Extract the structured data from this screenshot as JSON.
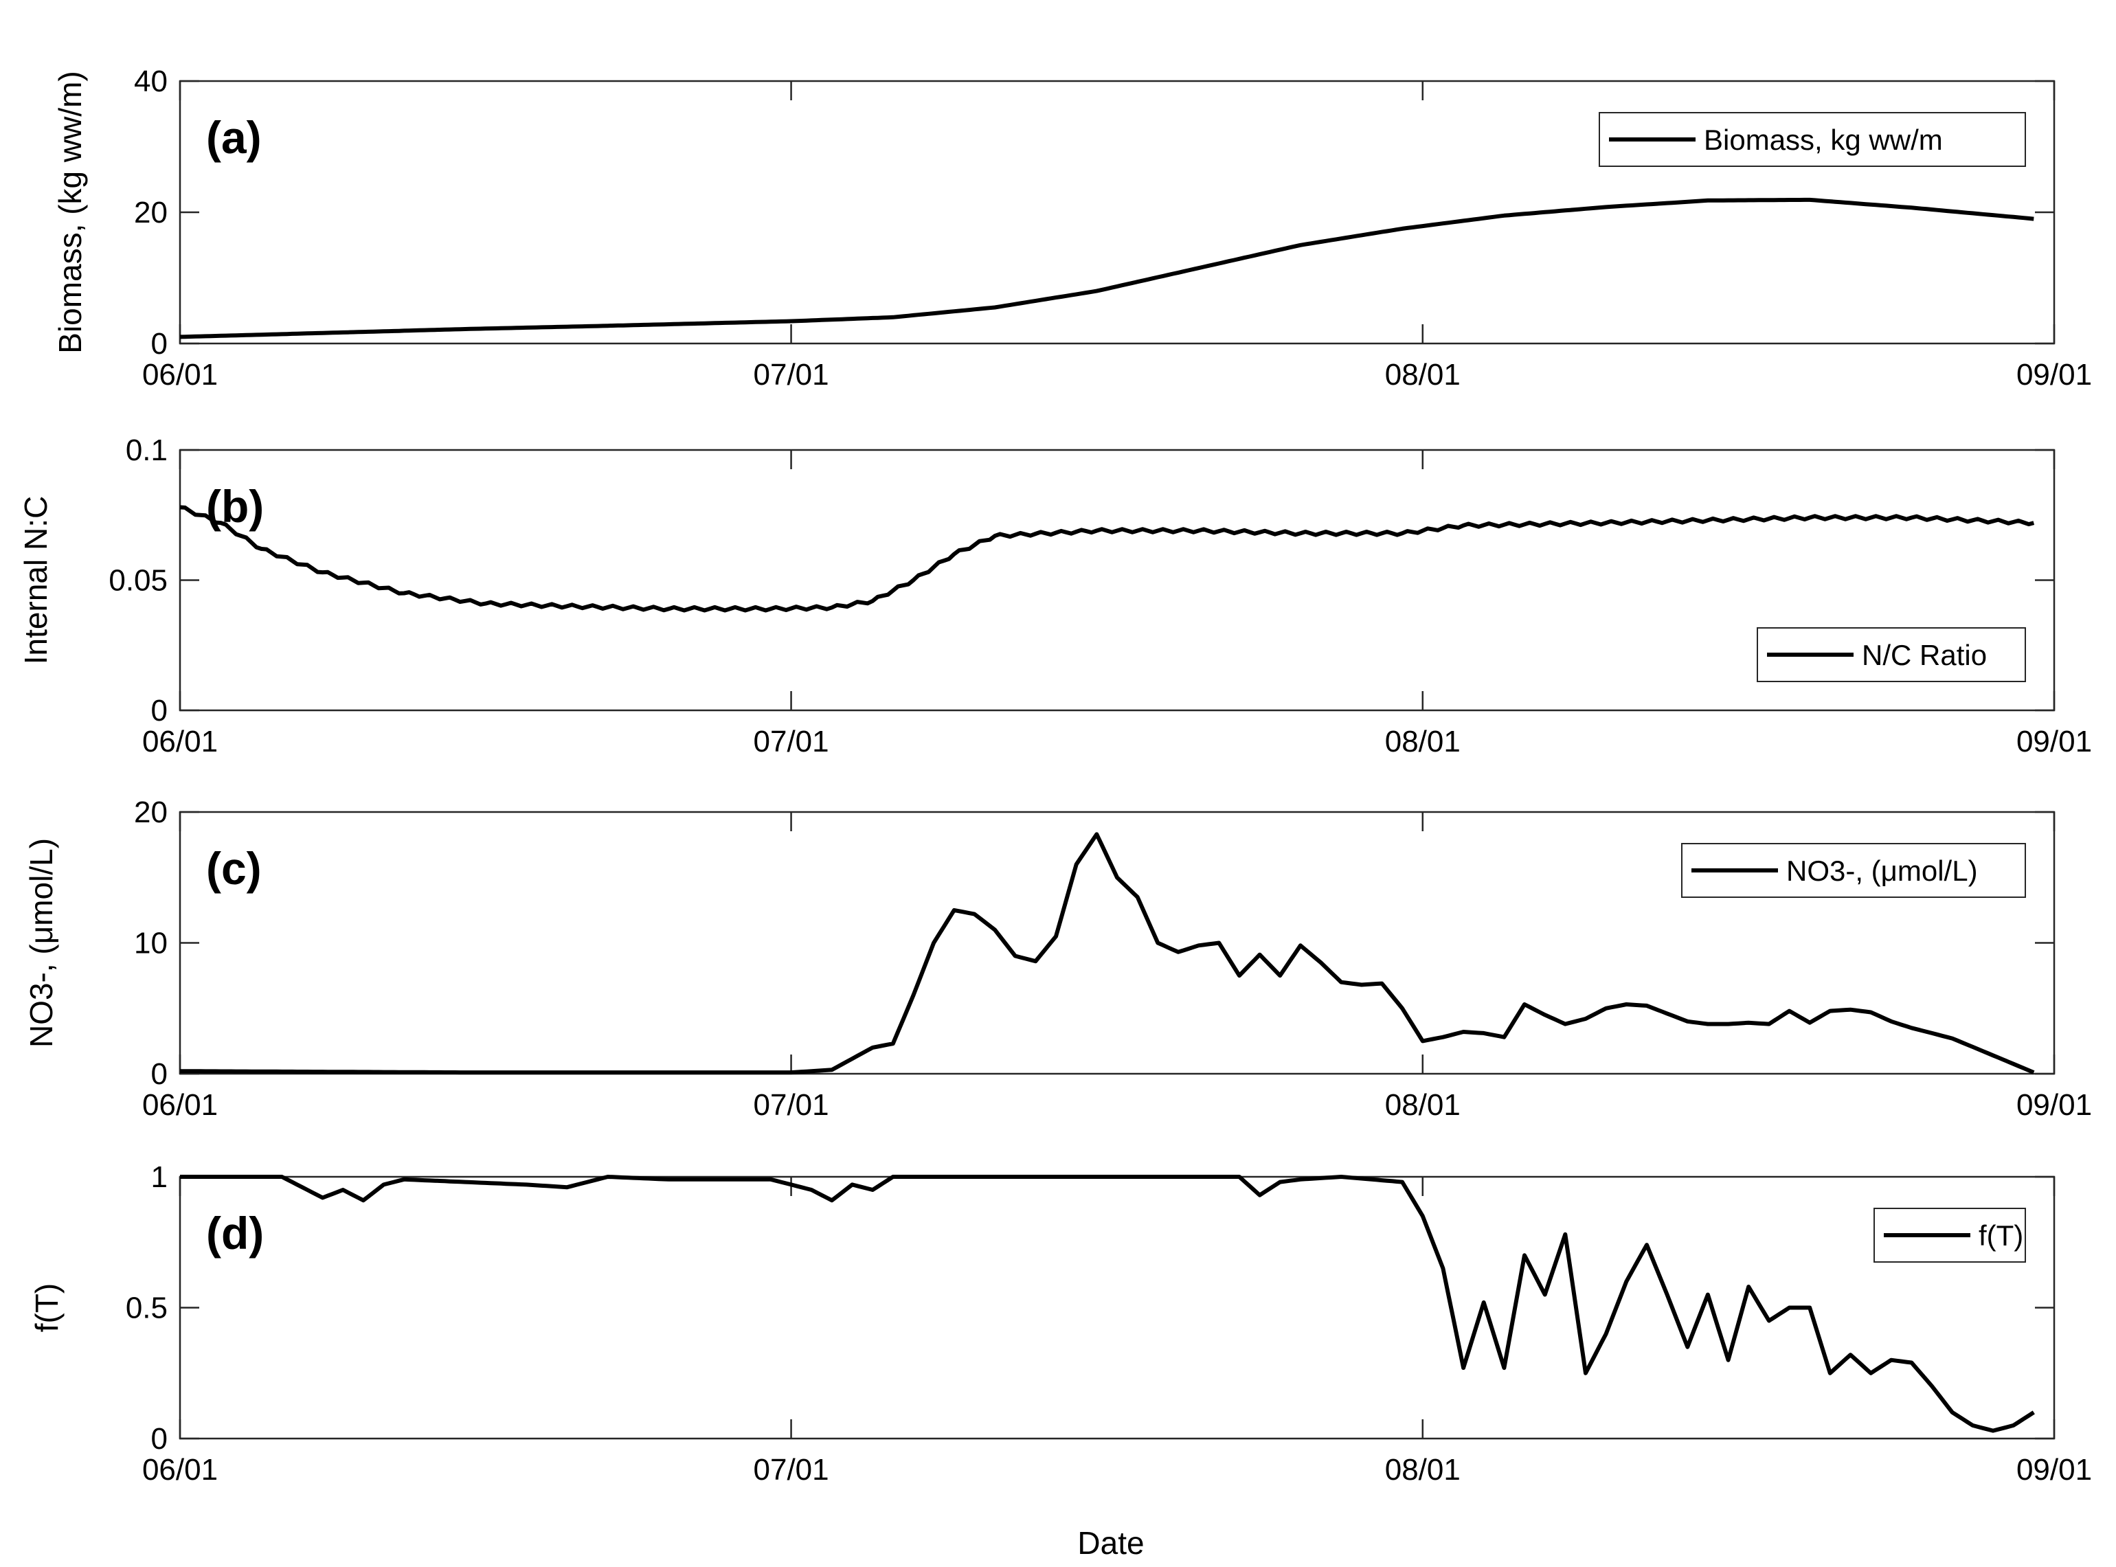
{
  "colors": {
    "line": "#000000",
    "axes": "#262626",
    "background": "#ffffff"
  },
  "x_axis_label": "Date",
  "chart_data": [
    {
      "type": "line",
      "panel_label": "(a)",
      "ylabel": "Biomass, (kg ww/m)",
      "ylim": [
        0,
        40
      ],
      "yticks": [
        0,
        20,
        40
      ],
      "ytick_labels": [
        "0",
        "20",
        "40"
      ],
      "xlim": [
        "06/01",
        "09/01"
      ],
      "xtick_labels": [
        "06/01",
        "07/01",
        "08/01",
        "09/01"
      ],
      "legend": {
        "entries": [
          "Biomass, kg ww/m"
        ],
        "placement": "top-right"
      },
      "series": [
        {
          "name": "Biomass, kg ww/m",
          "x": [
            "06/01",
            "06/08",
            "06/15",
            "06/22",
            "07/01",
            "07/06",
            "07/11",
            "07/16",
            "07/21",
            "07/26",
            "07/31",
            "08/05",
            "08/10",
            "08/15",
            "08/20",
            "08/25",
            "08/31"
          ],
          "y": [
            1,
            1.6,
            2.2,
            2.7,
            3.4,
            4,
            5.5,
            8,
            11.5,
            15,
            17.5,
            19.5,
            20.8,
            21.8,
            21.9,
            20.7,
            19
          ],
          "wiggle": 0
        }
      ]
    },
    {
      "type": "line",
      "panel_label": "(b)",
      "ylabel": "Internal N:C",
      "ylim": [
        0,
        0.1
      ],
      "yticks": [
        0,
        0.05,
        0.1
      ],
      "ytick_labels": [
        "0",
        "0.05",
        "0.1"
      ],
      "xlim": [
        "06/01",
        "09/01"
      ],
      "xtick_labels": [
        "06/01",
        "07/01",
        "08/01",
        "09/01"
      ],
      "legend": {
        "entries": [
          "N/C Ratio"
        ],
        "placement": "bottom-right"
      },
      "series": [
        {
          "name": "N/C Ratio",
          "x": [
            "06/01",
            "06/03",
            "06/05",
            "06/08",
            "06/12",
            "06/16",
            "06/20",
            "06/25",
            "06/30",
            "07/03",
            "07/05",
            "07/07",
            "07/09",
            "07/11",
            "07/16",
            "07/21",
            "07/26",
            "07/31",
            "08/03",
            "08/10",
            "08/20",
            "08/25",
            "08/31"
          ],
          "y": [
            0.078,
            0.072,
            0.062,
            0.053,
            0.045,
            0.041,
            0.04,
            0.039,
            0.039,
            0.0395,
            0.042,
            0.05,
            0.06,
            0.067,
            0.069,
            0.069,
            0.068,
            0.068,
            0.071,
            0.072,
            0.074,
            0.074,
            0.072
          ],
          "wiggle": 0.0006
        }
      ]
    },
    {
      "type": "line",
      "panel_label": "(c)",
      "ylabel": "NO3-, (μmol/L)",
      "ylim": [
        0,
        20
      ],
      "yticks": [
        0,
        10,
        20
      ],
      "ytick_labels": [
        "0",
        "10",
        "20"
      ],
      "xlim": [
        "06/01",
        "09/01"
      ],
      "xtick_labels": [
        "06/01",
        "07/01",
        "08/01",
        "09/01"
      ],
      "legend": {
        "entries": [
          "NO3-, (μmol/L)"
        ],
        "placement": "top-right"
      },
      "series": [
        {
          "name": "NO3-, (μmol/L)",
          "x": [
            "06/01",
            "06/15",
            "07/01",
            "07/03",
            "07/05",
            "07/06",
            "07/07",
            "07/08",
            "07/09",
            "07/10",
            "07/11",
            "07/12",
            "07/13",
            "07/14",
            "07/15",
            "07/16",
            "07/17",
            "07/18",
            "07/19",
            "07/20",
            "07/21",
            "07/22",
            "07/23",
            "07/24",
            "07/25",
            "07/26",
            "07/27",
            "07/28",
            "07/29",
            "07/30",
            "07/31",
            "08/01",
            "08/02",
            "08/03",
            "08/04",
            "08/05",
            "08/06",
            "08/07",
            "08/08",
            "08/09",
            "08/10",
            "08/11",
            "08/12",
            "08/13",
            "08/14",
            "08/15",
            "08/16",
            "08/17",
            "08/18",
            "08/19",
            "08/20",
            "08/21",
            "08/22",
            "08/23",
            "08/24",
            "08/25",
            "08/27",
            "08/31"
          ],
          "y": [
            0.2,
            0.1,
            0.1,
            0.3,
            2,
            2.3,
            6,
            10,
            12.5,
            12.2,
            11,
            9,
            8.6,
            10.5,
            16,
            18.3,
            15,
            13.5,
            10,
            9.3,
            9.8,
            10,
            7.5,
            9.1,
            7.5,
            9.8,
            8.5,
            7,
            6.8,
            6.9,
            5,
            2.5,
            2.8,
            3.2,
            3.1,
            2.8,
            5.3,
            4.5,
            3.8,
            4.2,
            5,
            5.3,
            5.2,
            4.6,
            4,
            3.8,
            3.8,
            3.9,
            3.8,
            4.8,
            3.9,
            4.8,
            4.9,
            4.7,
            4,
            3.5,
            2.7,
            0.1
          ],
          "wiggle": 0
        }
      ]
    },
    {
      "type": "line",
      "panel_label": "(d)",
      "ylabel": "f(T)",
      "ylim": [
        0,
        1
      ],
      "yticks": [
        0,
        0.5,
        1
      ],
      "ytick_labels": [
        "0",
        "0.5",
        "1"
      ],
      "xlim": [
        "06/01",
        "09/01"
      ],
      "xtick_labels": [
        "06/01",
        "07/01",
        "08/01",
        "09/01"
      ],
      "legend": {
        "entries": [
          "f(T)"
        ],
        "placement": "top-right"
      },
      "series": [
        {
          "name": "f(T)",
          "x": [
            "06/01",
            "06/06",
            "06/08",
            "06/09",
            "06/10",
            "06/11",
            "06/12",
            "06/15",
            "06/18",
            "06/20",
            "06/22",
            "06/25",
            "06/30",
            "07/02",
            "07/03",
            "07/04",
            "07/05",
            "07/06",
            "07/08",
            "07/10",
            "07/15",
            "07/20",
            "07/23",
            "07/24",
            "07/25",
            "07/26",
            "07/28",
            "07/31",
            "08/01",
            "08/02",
            "08/03",
            "08/04",
            "08/05",
            "08/06",
            "08/07",
            "08/08",
            "08/09",
            "08/10",
            "08/11",
            "08/12",
            "08/13",
            "08/14",
            "08/15",
            "08/16",
            "08/17",
            "08/18",
            "08/19",
            "08/20",
            "08/21",
            "08/22",
            "08/23",
            "08/24",
            "08/25",
            "08/26",
            "08/27",
            "08/28",
            "08/29",
            "08/30",
            "08/31"
          ],
          "y": [
            1,
            1,
            0.92,
            0.95,
            0.91,
            0.97,
            0.99,
            0.98,
            0.97,
            0.96,
            1,
            0.99,
            0.99,
            0.95,
            0.91,
            0.97,
            0.95,
            1,
            1,
            1,
            1,
            1,
            1,
            0.93,
            0.98,
            0.99,
            1,
            0.98,
            0.85,
            0.65,
            0.27,
            0.52,
            0.27,
            0.7,
            0.55,
            0.78,
            0.25,
            0.4,
            0.6,
            0.74,
            0.55,
            0.35,
            0.55,
            0.3,
            0.58,
            0.45,
            0.5,
            0.5,
            0.25,
            0.32,
            0.25,
            0.3,
            0.29,
            0.2,
            0.1,
            0.05,
            0.03,
            0.05,
            0.1
          ],
          "wiggle": 0
        }
      ]
    }
  ]
}
